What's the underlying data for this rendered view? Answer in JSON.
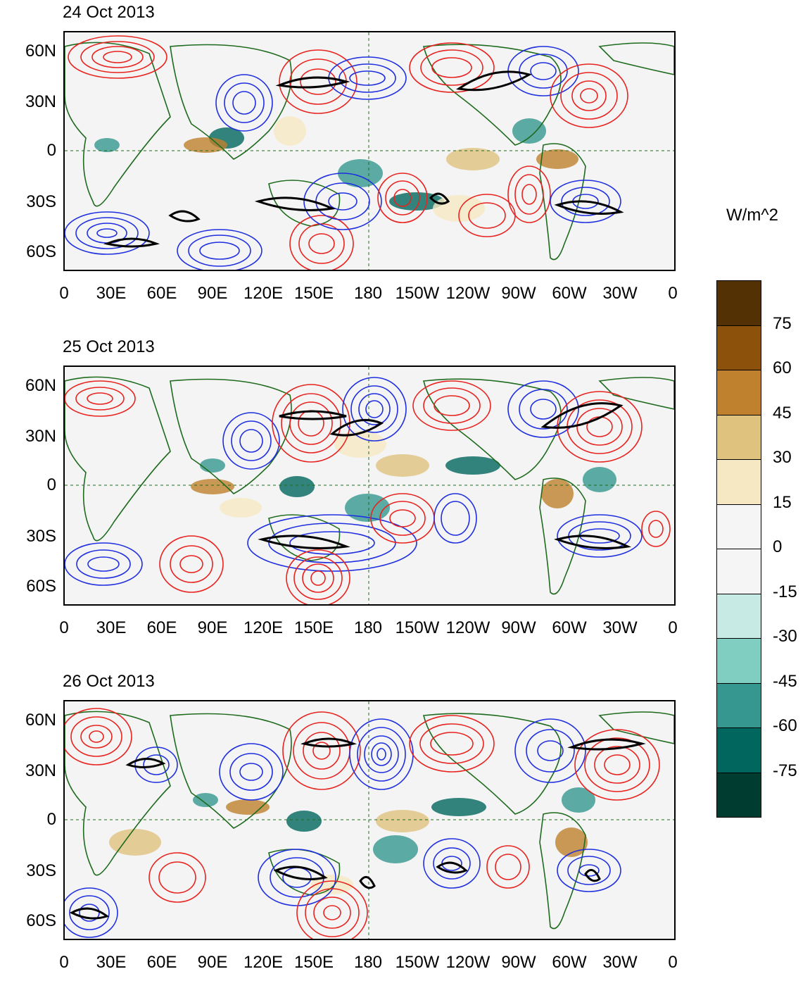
{
  "panels": [
    {
      "title": "24 Oct 2013"
    },
    {
      "title": "25 Oct 2013"
    },
    {
      "title": "26 Oct 2013"
    }
  ],
  "lat_labels": [
    "60N",
    "30N",
    "0",
    "30S",
    "60S"
  ],
  "lon_labels": [
    "0",
    "30E",
    "60E",
    "90E",
    "120E",
    "150E",
    "180",
    "150W",
    "120W",
    "90W",
    "60W",
    "30W",
    "0"
  ],
  "colorbar": {
    "units": "W/m^2",
    "labels": [
      "75",
      "60",
      "45",
      "30",
      "15",
      "0",
      "-15",
      "-30",
      "-45",
      "-60",
      "-75"
    ],
    "colors": [
      "#543005",
      "#8c510a",
      "#bf812d",
      "#dfc27d",
      "#f6e8c3",
      "#f5f5f5",
      "#f5f5f5",
      "#c7eae5",
      "#80cdc1",
      "#35978f",
      "#01665e",
      "#003c30"
    ]
  },
  "colors": {
    "positive_contour": "#e8231f",
    "negative_contour": "#1f2fe0",
    "highlight_contour": "#000000",
    "coastline": "#1e6b1e",
    "equator": "#1e6b1e"
  }
}
